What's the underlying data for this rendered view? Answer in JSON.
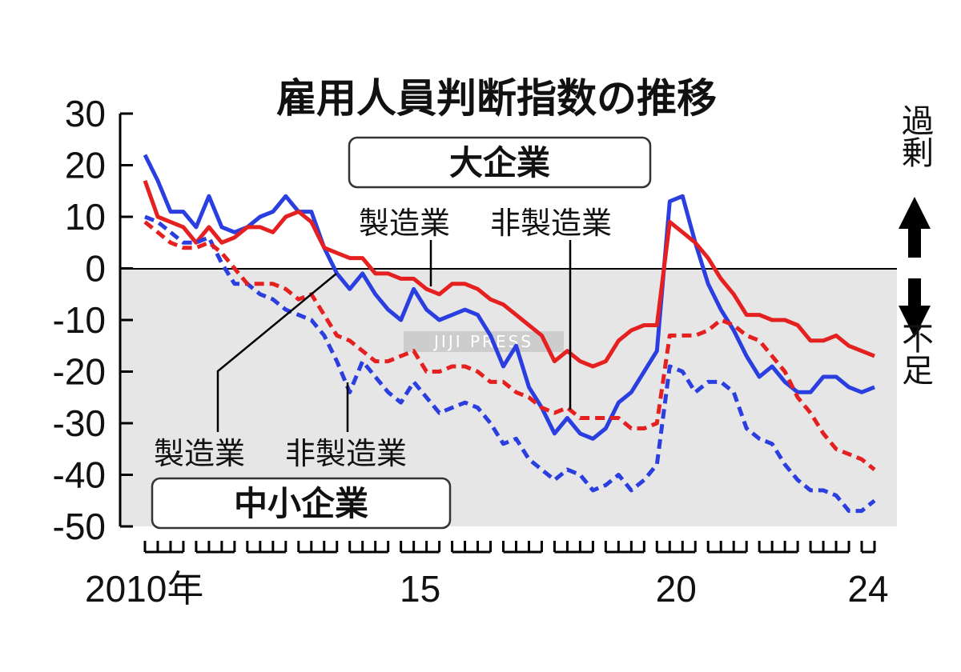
{
  "chart_data": {
    "type": "line",
    "title": "雇用人員判断指数の推移",
    "ylim": [
      -50,
      30
    ],
    "y_ticks": [
      "30",
      "20",
      "10",
      "0",
      "-10",
      "-20",
      "-30",
      "-40",
      "-50"
    ],
    "y_tick_values": [
      30,
      20,
      10,
      0,
      -10,
      -20,
      -30,
      -40,
      -50
    ],
    "x_tick_labels": [
      {
        "label": "2010年",
        "year": 2010
      },
      {
        "label": "15",
        "year": 2015
      },
      {
        "label": "20",
        "year": 2020
      },
      {
        "label": "24",
        "year": 2024
      }
    ],
    "x_range": [
      2010.0,
      2024.25
    ],
    "quarters": [
      "2010Q1",
      "2010Q2",
      "2010Q3",
      "2010Q4",
      "2011Q1",
      "2011Q2",
      "2011Q3",
      "2011Q4",
      "2012Q1",
      "2012Q2",
      "2012Q3",
      "2012Q4",
      "2013Q1",
      "2013Q2",
      "2013Q3",
      "2013Q4",
      "2014Q1",
      "2014Q2",
      "2014Q3",
      "2014Q4",
      "2015Q1",
      "2015Q2",
      "2015Q3",
      "2015Q4",
      "2016Q1",
      "2016Q2",
      "2016Q3",
      "2016Q4",
      "2017Q1",
      "2017Q2",
      "2017Q3",
      "2017Q4",
      "2018Q1",
      "2018Q2",
      "2018Q3",
      "2018Q4",
      "2019Q1",
      "2019Q2",
      "2019Q3",
      "2019Q4",
      "2020Q1",
      "2020Q2",
      "2020Q3",
      "2020Q4",
      "2021Q1",
      "2021Q2",
      "2021Q3",
      "2021Q4",
      "2022Q1",
      "2022Q2",
      "2022Q3",
      "2022Q4",
      "2023Q1",
      "2023Q2",
      "2023Q3",
      "2023Q4",
      "2024Q1",
      "2024Q2"
    ],
    "groups": [
      "大企業",
      "中小企業"
    ],
    "series": [
      {
        "name": "製造業",
        "group": "大企業",
        "color": "#2b3fe0",
        "style": "solid",
        "values": [
          22,
          17,
          11,
          11,
          8,
          14,
          8,
          7,
          8,
          10,
          11,
          14,
          11,
          11,
          4,
          -1,
          -4,
          -1,
          -5,
          -8,
          -10,
          -4,
          -8,
          -10,
          -9,
          -8,
          -9,
          -13,
          -19,
          -15,
          -23,
          -27,
          -32,
          -29,
          -32,
          -33,
          -31,
          -26,
          -24,
          -20,
          -16,
          13,
          14,
          5,
          -3,
          -8,
          -12,
          -17,
          -21,
          -19,
          -22,
          -24,
          -24,
          -21,
          -21,
          -23,
          -24,
          -23
        ]
      },
      {
        "name": "非製造業",
        "group": "大企業",
        "color": "#e52020",
        "style": "solid",
        "values": [
          17,
          10,
          9,
          8,
          5,
          8,
          5,
          6,
          8,
          8,
          7,
          10,
          11,
          9,
          4,
          3,
          2,
          2,
          -1,
          -1,
          -2,
          -2,
          -4,
          -5,
          -3,
          -3,
          -4,
          -6,
          -7,
          -9,
          -11,
          -13,
          -18,
          -16,
          -18,
          -19,
          -18,
          -14,
          -12,
          -11,
          -11,
          9,
          7,
          5,
          2,
          -2,
          -5,
          -9,
          -9,
          -10,
          -10,
          -11,
          -14,
          -14,
          -13,
          -15,
          -16,
          -17
        ]
      },
      {
        "name": "製造業",
        "group": "中小企業",
        "color": "#2b3fe0",
        "style": "dashed",
        "values": [
          10,
          9,
          7,
          5,
          5,
          6,
          1,
          -3,
          -3,
          -5,
          -6,
          -8,
          -9,
          -10,
          -13,
          -18,
          -24,
          -18,
          -21,
          -24,
          -26,
          -22,
          -25,
          -28,
          -27,
          -26,
          -27,
          -30,
          -34,
          -33,
          -37,
          -39,
          -41,
          -39,
          -40,
          -43,
          -42,
          -40,
          -43,
          -41,
          -38,
          -19,
          -20,
          -24,
          -22,
          -22,
          -24,
          -31,
          -33,
          -34,
          -38,
          -41,
          -43,
          -43,
          -44,
          -47,
          -47,
          -45
        ]
      },
      {
        "name": "非製造業",
        "group": "中小企業",
        "color": "#e52020",
        "style": "dashed",
        "values": [
          9,
          7,
          5,
          4,
          4,
          5,
          3,
          0,
          -3,
          -3,
          -3,
          -4,
          -6,
          -5,
          -9,
          -13,
          -14,
          -16,
          -18,
          -18,
          -17,
          -16,
          -20,
          -20,
          -19,
          -19,
          -20,
          -22,
          -22,
          -24,
          -25,
          -27,
          -28,
          -27,
          -29,
          -29,
          -29,
          -29,
          -31,
          -31,
          -30,
          -13,
          -13,
          -13,
          -12,
          -10,
          -11,
          -13,
          -14,
          -17,
          -20,
          -25,
          -28,
          -32,
          -35,
          -36,
          -37,
          -39
        ]
      }
    ],
    "annotations": {
      "top_box": "大企業",
      "top_labels": [
        "製造業",
        "非製造業"
      ],
      "bottom_box": "中小企業",
      "bottom_labels": [
        "製造業",
        "非製造業"
      ],
      "side_top": "過剰",
      "side_bottom": "不足"
    },
    "watermark": "JIJI PRESS",
    "shaded_region": "below-zero",
    "grid": false
  }
}
